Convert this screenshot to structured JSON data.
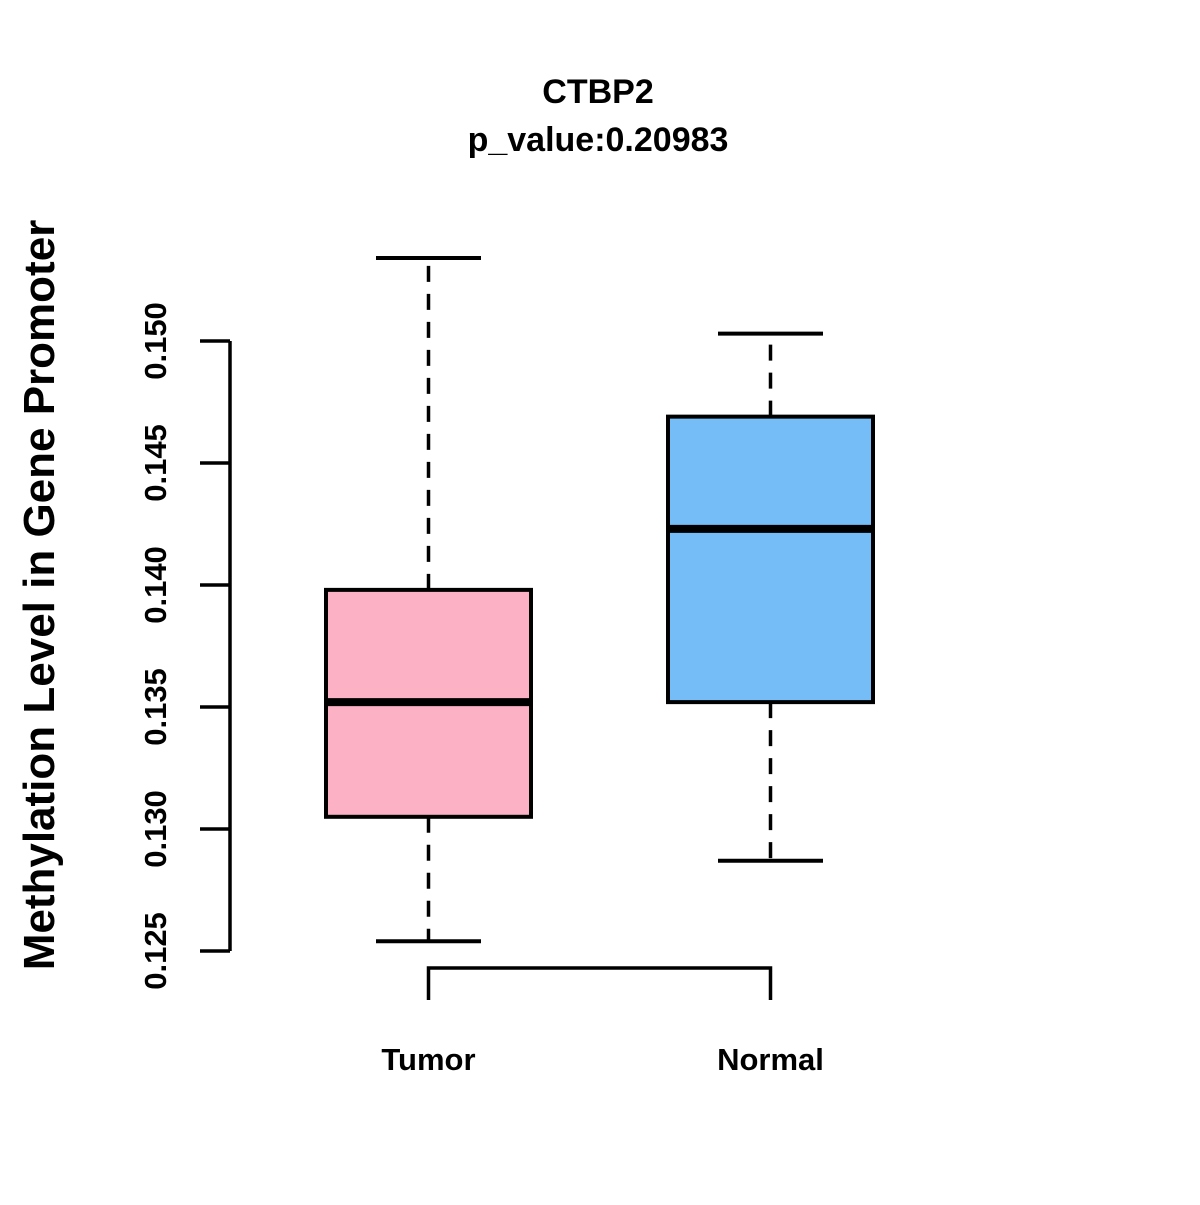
{
  "chart_data": {
    "type": "boxplot",
    "title": "CTBP2",
    "subtitle": "p_value:0.20983",
    "ylabel": "Methylation Level in Gene Promoter",
    "xlabel": "",
    "ylim": [
      0.125,
      0.15
    ],
    "grid": false,
    "legend": "none",
    "y_ticks": [
      {
        "value": 0.125,
        "label": "0.125"
      },
      {
        "value": 0.13,
        "label": "0.130"
      },
      {
        "value": 0.135,
        "label": "0.135"
      },
      {
        "value": 0.14,
        "label": "0.140"
      },
      {
        "value": 0.145,
        "label": "0.145"
      },
      {
        "value": 0.15,
        "label": "0.150"
      }
    ],
    "categories": [
      "Tumor",
      "Normal"
    ],
    "series": [
      {
        "name": "Tumor",
        "color": "#FCB1C4",
        "lower_whisker": 0.1254,
        "q1": 0.1305,
        "median": 0.1352,
        "q3": 0.1398,
        "upper_whisker": 0.1534
      },
      {
        "name": "Normal",
        "color": "#74BDF7",
        "lower_whisker": 0.1287,
        "q1": 0.1352,
        "median": 0.1423,
        "q3": 0.1469,
        "upper_whisker": 0.1503
      }
    ],
    "colors": {
      "box_border": "#000000",
      "median_line": "#000000",
      "whisker": "#000000",
      "axis": "#000000",
      "text": "#000000",
      "background": "#FFFFFF"
    }
  }
}
